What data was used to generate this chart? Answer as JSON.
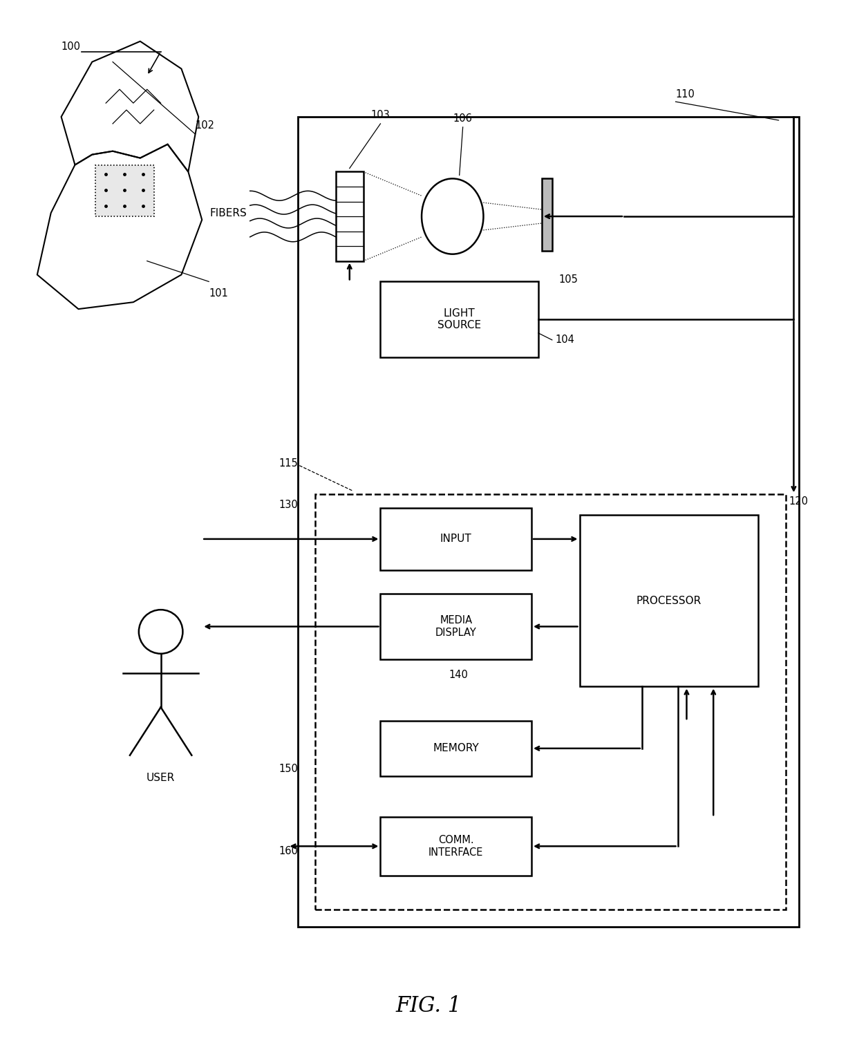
{
  "bg_color": "#ffffff",
  "line_color": "#000000",
  "fig_label": "FIG. 1",
  "ref_100": "100",
  "ref_101": "101",
  "ref_102": "102",
  "ref_103": "103",
  "ref_104": "104",
  "ref_105": "105",
  "ref_106": "106",
  "ref_110": "110",
  "ref_115": "115",
  "ref_120": "120",
  "ref_130": "130",
  "ref_140": "140",
  "ref_150": "150",
  "ref_160": "160",
  "label_fibers": "FIBERS",
  "label_light_source": "LIGHT\nSOURCE",
  "label_input": "INPUT",
  "label_processor": "PROCESSOR",
  "label_media_display": "MEDIA\nDISPLAY",
  "label_memory": "MEMORY",
  "label_comm_interface": "COMM.\nINTERFACE",
  "label_user": "USER"
}
